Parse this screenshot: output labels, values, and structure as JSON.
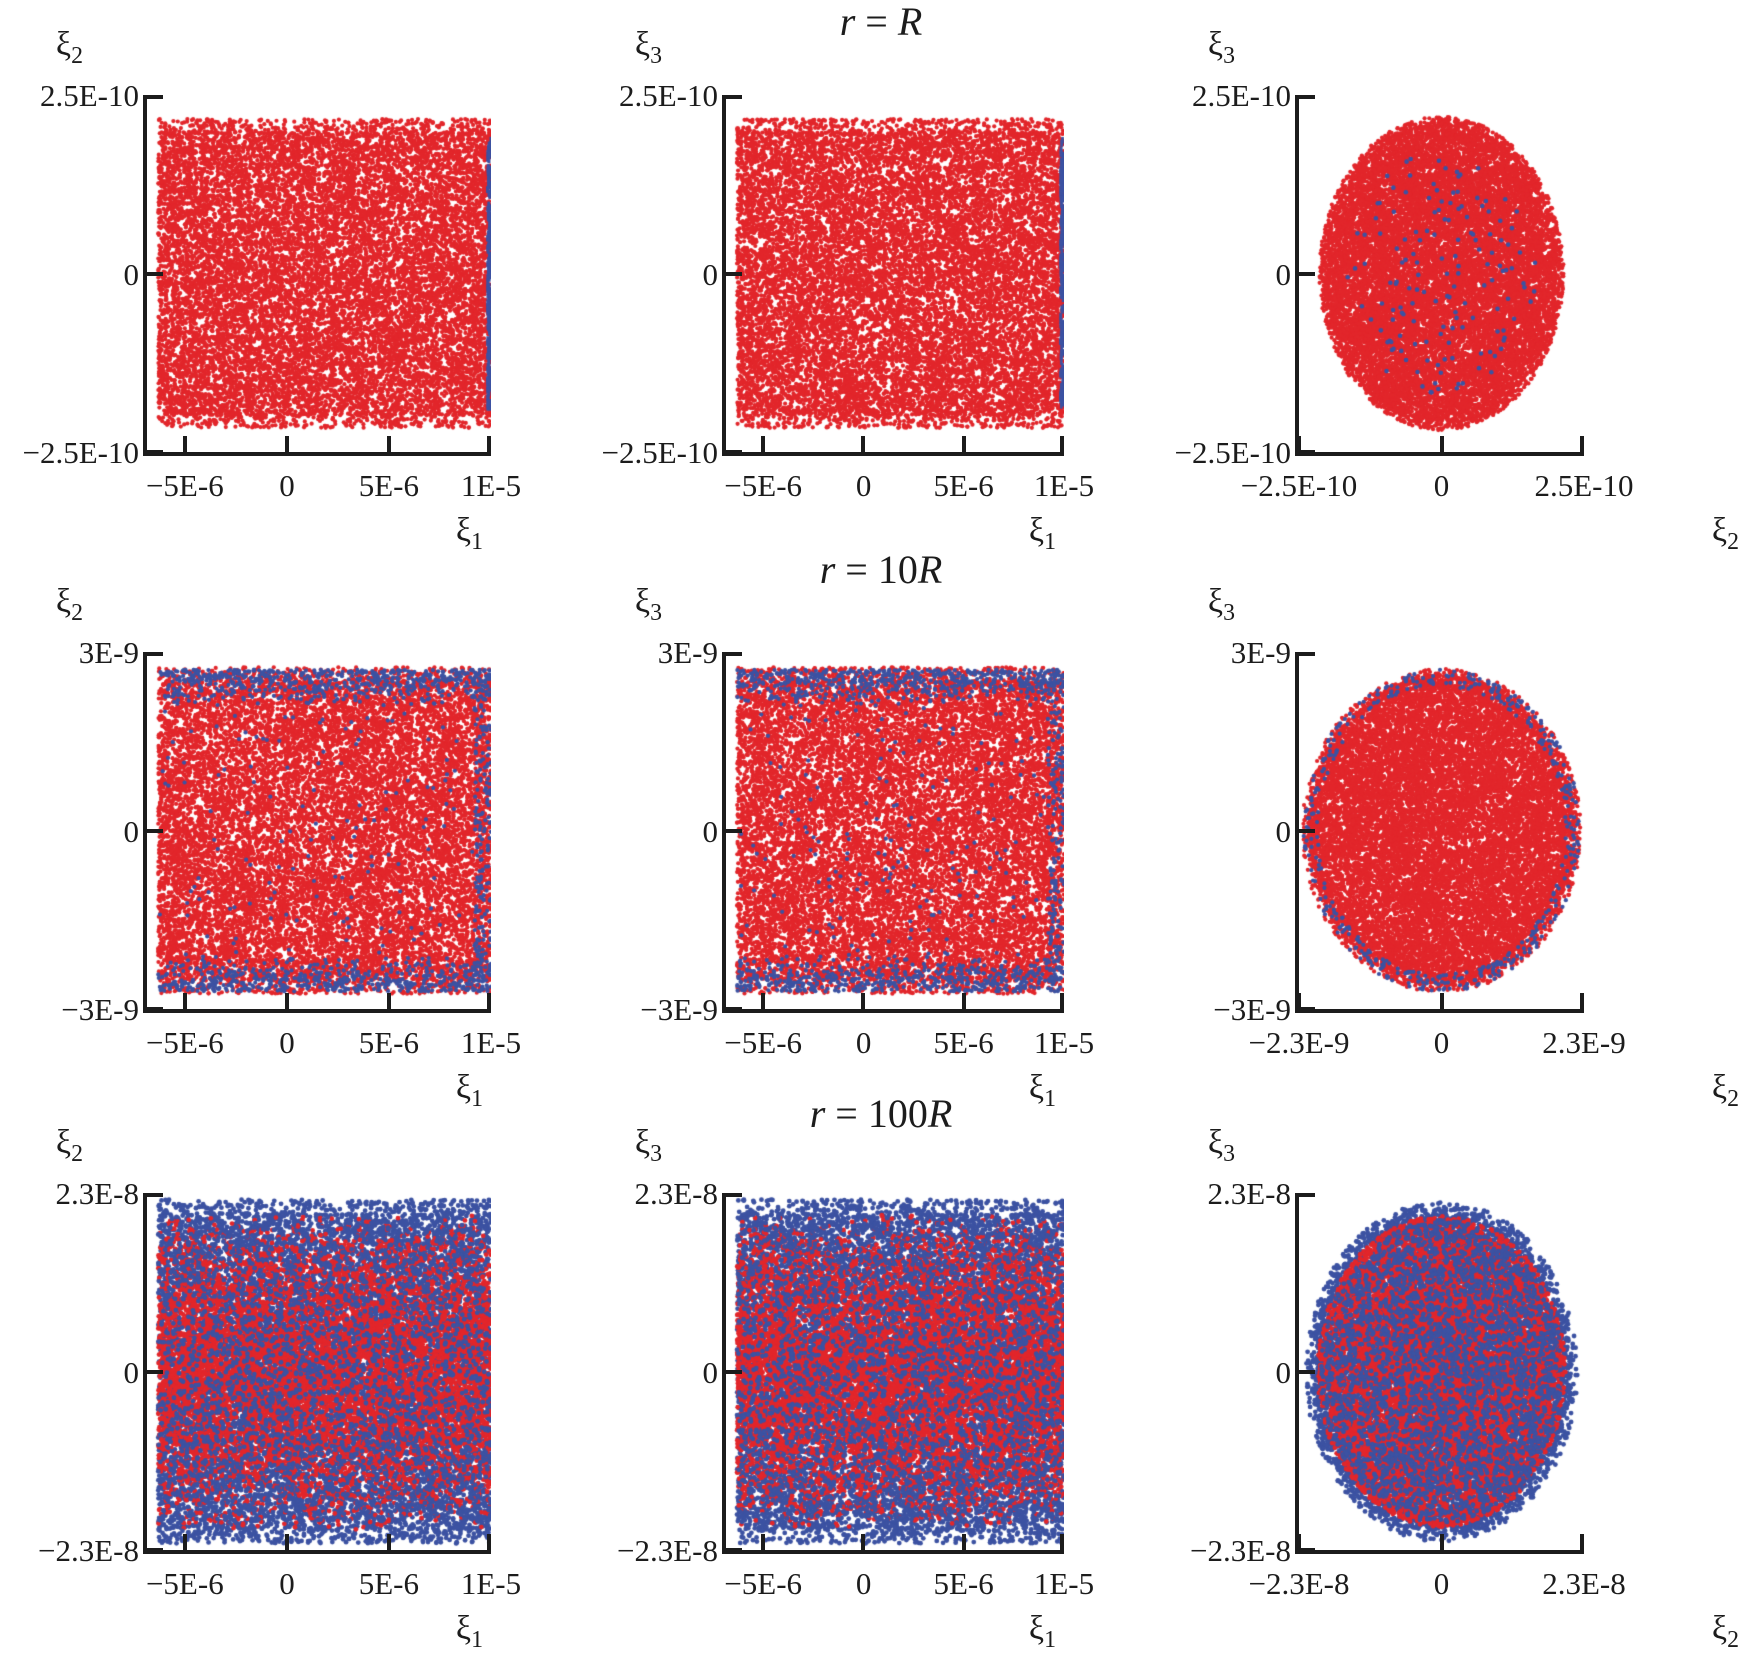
{
  "chart_data": {
    "type": "scatter",
    "colors": {
      "red": "#e2262b",
      "blue": "#3c52a2",
      "axis": "#1c1c1c",
      "background": "#ffffff"
    },
    "rows": [
      {
        "title": {
          "var": "r",
          "eq": " = ",
          "coeff": "",
          "unit": "R"
        },
        "plots": [
          {
            "type": "scatter",
            "xlabel": {
              "base": "ξ",
              "sub": "1"
            },
            "ylabel": {
              "base": "ξ",
              "sub": "2"
            },
            "xlim": [
              -6.85e-06,
              1e-05
            ],
            "ylim": [
              -2.5e-10,
              2.5e-10
            ],
            "x_ticks": [
              {
                "label": "−5E-6",
                "value": -5e-06
              },
              {
                "label": "0",
                "value": 0
              },
              {
                "label": "5E-6",
                "value": 5e-06
              },
              {
                "label": "1E-5",
                "value": 1e-05
              }
            ],
            "y_ticks": [
              {
                "label": "2.5E-10",
                "value": 2.5e-10
              },
              {
                "label": "0",
                "value": 0
              },
              {
                "label": "−2.5E-10",
                "value": -2.5e-10
              }
            ],
            "series": [
              {
                "name": "red-points",
                "color": "red",
                "dist": "rect",
                "x": [
                  -6.3e-06,
                  1e-05
                ],
                "y_spread": 2.05e-10,
                "fringe": 0.05,
                "n": 15000,
                "size": 2.1,
                "seed": 11
              },
              {
                "name": "blue-points",
                "color": "blue",
                "dist": "vstripe",
                "x": [
                  9.82e-06,
                  1e-05
                ],
                "y_spread": 1.88e-10,
                "n": 230,
                "size": 2.0,
                "seed": 12,
                "dash": true
              }
            ]
          },
          {
            "type": "scatter",
            "xlabel": {
              "base": "ξ",
              "sub": "1"
            },
            "ylabel": {
              "base": "ξ",
              "sub": "3"
            },
            "xlim": [
              -6.85e-06,
              1e-05
            ],
            "ylim": [
              -2.5e-10,
              2.5e-10
            ],
            "x_ticks": [
              {
                "label": "−5E-6",
                "value": -5e-06
              },
              {
                "label": "0",
                "value": 0
              },
              {
                "label": "5E-6",
                "value": 5e-06
              },
              {
                "label": "1E-5",
                "value": 1e-05
              }
            ],
            "y_ticks": [
              {
                "label": "2.5E-10",
                "value": 2.5e-10
              },
              {
                "label": "0",
                "value": 0
              },
              {
                "label": "−2.5E-10",
                "value": -2.5e-10
              }
            ],
            "series": [
              {
                "name": "red-points",
                "color": "red",
                "dist": "rect",
                "x": [
                  -6.3e-06,
                  1e-05
                ],
                "y_spread": 2.05e-10,
                "fringe": 0.05,
                "n": 15000,
                "size": 2.1,
                "seed": 21
              },
              {
                "name": "blue-points",
                "color": "blue",
                "dist": "vstripe",
                "x": [
                  9.82e-06,
                  1e-05
                ],
                "y_spread": 1.88e-10,
                "n": 230,
                "size": 2.0,
                "seed": 22,
                "dash": true
              }
            ]
          },
          {
            "type": "scatter",
            "xlabel": {
              "base": "ξ",
              "sub": "2"
            },
            "ylabel": {
              "base": "ξ",
              "sub": "3"
            },
            "xlim": [
              -2.5e-10,
              2.5e-10
            ],
            "ylim": [
              -2.5e-10,
              2.5e-10
            ],
            "x_ticks": [
              {
                "label": "−2.5E-10",
                "value": -2.5e-10
              },
              {
                "label": "0",
                "value": 0
              },
              {
                "label": "2.5E-10",
                "value": 2.5e-10
              }
            ],
            "y_ticks": [
              {
                "label": "2.5E-10",
                "value": 2.5e-10
              },
              {
                "label": "0",
                "value": 0
              },
              {
                "label": "−2.5E-10",
                "value": -2.5e-10
              }
            ],
            "series": [
              {
                "name": "red-points",
                "color": "red",
                "dist": "disk",
                "rx": 2.05e-10,
                "ry": 2.1e-10,
                "rim_fuzz": 0.05,
                "n": 16000,
                "size": 2.1,
                "seed": 31
              },
              {
                "name": "blue-points",
                "color": "blue",
                "dist": "disk",
                "rx": 1.65e-10,
                "ry": 1.7e-10,
                "n": 150,
                "size": 2.3,
                "seed": 32
              }
            ]
          }
        ]
      },
      {
        "title": {
          "var": "r",
          "eq": " = ",
          "coeff": "10",
          "unit": "R"
        },
        "plots": [
          {
            "type": "scatter",
            "xlabel": {
              "base": "ξ",
              "sub": "1"
            },
            "ylabel": {
              "base": "ξ",
              "sub": "2"
            },
            "xlim": [
              -6.85e-06,
              1e-05
            ],
            "ylim": [
              -3e-09,
              3e-09
            ],
            "x_ticks": [
              {
                "label": "−5E-6",
                "value": -5e-06
              },
              {
                "label": "0",
                "value": 0
              },
              {
                "label": "5E-6",
                "value": 5e-06
              },
              {
                "label": "1E-5",
                "value": 1e-05
              }
            ],
            "y_ticks": [
              {
                "label": "3E-9",
                "value": 3e-09
              },
              {
                "label": "0",
                "value": 0
              },
              {
                "label": "−3E-9",
                "value": -3e-09
              }
            ],
            "series": [
              {
                "name": "red-points",
                "color": "red",
                "dist": "rect",
                "x": [
                  -6.3e-06,
                  1e-05
                ],
                "y_spread": 2.6e-09,
                "fringe": 0.05,
                "n": 15000,
                "size": 2.1,
                "seed": 41
              },
              {
                "name": "blue-points",
                "color": "blue",
                "dist": "edges",
                "x": [
                  -6.3e-06,
                  1e-05
                ],
                "y_spread": 2.6e-09,
                "n": 1500,
                "size": 2.1,
                "seed": 42
              }
            ]
          },
          {
            "type": "scatter",
            "xlabel": {
              "base": "ξ",
              "sub": "1"
            },
            "ylabel": {
              "base": "ξ",
              "sub": "3"
            },
            "xlim": [
              -6.85e-06,
              1e-05
            ],
            "ylim": [
              -3e-09,
              3e-09
            ],
            "x_ticks": [
              {
                "label": "−5E-6",
                "value": -5e-06
              },
              {
                "label": "0",
                "value": 0
              },
              {
                "label": "5E-6",
                "value": 5e-06
              },
              {
                "label": "1E-5",
                "value": 1e-05
              }
            ],
            "y_ticks": [
              {
                "label": "3E-9",
                "value": 3e-09
              },
              {
                "label": "0",
                "value": 0
              },
              {
                "label": "−3E-9",
                "value": -3e-09
              }
            ],
            "series": [
              {
                "name": "red-points",
                "color": "red",
                "dist": "rect",
                "x": [
                  -6.3e-06,
                  1e-05
                ],
                "y_spread": 2.6e-09,
                "fringe": 0.05,
                "n": 15000,
                "size": 2.1,
                "seed": 51
              },
              {
                "name": "blue-points",
                "color": "blue",
                "dist": "edges",
                "x": [
                  -6.3e-06,
                  1e-05
                ],
                "y_spread": 2.6e-09,
                "n": 1500,
                "size": 2.1,
                "seed": 52
              }
            ]
          },
          {
            "type": "scatter",
            "xlabel": {
              "base": "ξ",
              "sub": "2"
            },
            "ylabel": {
              "base": "ξ",
              "sub": "3"
            },
            "xlim": [
              -2.3e-09,
              2.3e-09
            ],
            "ylim": [
              -3e-09,
              3e-09
            ],
            "x_ticks": [
              {
                "label": "−2.3E-9",
                "value": -2.3e-09
              },
              {
                "label": "0",
                "value": 0
              },
              {
                "label": "2.3E-9",
                "value": 2.3e-09
              }
            ],
            "y_ticks": [
              {
                "label": "3E-9",
                "value": 3e-09
              },
              {
                "label": "0",
                "value": 0
              },
              {
                "label": "−3E-9",
                "value": -3e-09
              }
            ],
            "series": [
              {
                "name": "red-points",
                "color": "red",
                "dist": "disk",
                "rx": 2.15e-09,
                "ry": 2.6e-09,
                "rim_fuzz": 0.03,
                "n": 16000,
                "size": 2.1,
                "seed": 61
              },
              {
                "name": "blue-points",
                "color": "blue",
                "dist": "rim",
                "rx": 2.15e-09,
                "ry": 2.6e-09,
                "r_in": 0.93,
                "r_out": 1.04,
                "n": 450,
                "size": 2.1,
                "seed": 62
              }
            ]
          }
        ]
      },
      {
        "title": {
          "var": "r",
          "eq": " = ",
          "coeff": "100",
          "unit": "R"
        },
        "plots": [
          {
            "type": "scatter",
            "xlabel": {
              "base": "ξ",
              "sub": "1"
            },
            "ylabel": {
              "base": "ξ",
              "sub": "2"
            },
            "xlim": [
              -6.85e-06,
              1e-05
            ],
            "ylim": [
              -2.3e-08,
              2.3e-08
            ],
            "x_ticks": [
              {
                "label": "−5E-6",
                "value": -5e-06
              },
              {
                "label": "0",
                "value": 0
              },
              {
                "label": "5E-6",
                "value": 5e-06
              },
              {
                "label": "1E-5",
                "value": 1e-05
              }
            ],
            "y_ticks": [
              {
                "label": "2.3E-8",
                "value": 2.3e-08
              },
              {
                "label": "0",
                "value": 0
              },
              {
                "label": "−2.3E-8",
                "value": -2.3e-08
              }
            ],
            "series": [
              {
                "name": "blue-points",
                "color": "blue",
                "dist": "rect",
                "x": [
                  -6.3e-06,
                  1e-05
                ],
                "y_spread": 2.1e-08,
                "fringe": 0.06,
                "n": 9000,
                "size": 2.4,
                "seed": 71
              },
              {
                "name": "red-points",
                "color": "red",
                "dist": "rect-center",
                "x": [
                  -6.3e-06,
                  1e-05
                ],
                "y_spread": 2.05e-08,
                "n": 9500,
                "size": 2.4,
                "seed": 72
              },
              {
                "name": "blue-speckle",
                "color": "blue",
                "dist": "rect",
                "x": [
                  -6.3e-06,
                  1e-05
                ],
                "y_spread": 2e-08,
                "fringe": 0.02,
                "n": 3200,
                "size": 2.4,
                "seed": 73
              }
            ]
          },
          {
            "type": "scatter",
            "xlabel": {
              "base": "ξ",
              "sub": "1"
            },
            "ylabel": {
              "base": "ξ",
              "sub": "3"
            },
            "xlim": [
              -6.85e-06,
              1e-05
            ],
            "ylim": [
              -2.3e-08,
              2.3e-08
            ],
            "x_ticks": [
              {
                "label": "−5E-6",
                "value": -5e-06
              },
              {
                "label": "0",
                "value": 0
              },
              {
                "label": "5E-6",
                "value": 5e-06
              },
              {
                "label": "1E-5",
                "value": 1e-05
              }
            ],
            "y_ticks": [
              {
                "label": "2.3E-8",
                "value": 2.3e-08
              },
              {
                "label": "0",
                "value": 0
              },
              {
                "label": "−2.3E-8",
                "value": -2.3e-08
              }
            ],
            "series": [
              {
                "name": "blue-points",
                "color": "blue",
                "dist": "rect",
                "x": [
                  -6.3e-06,
                  1e-05
                ],
                "y_spread": 2.1e-08,
                "fringe": 0.06,
                "n": 9000,
                "size": 2.4,
                "seed": 81
              },
              {
                "name": "red-points",
                "color": "red",
                "dist": "rect-center",
                "x": [
                  -6.3e-06,
                  1e-05
                ],
                "y_spread": 2.05e-08,
                "n": 9500,
                "size": 2.4,
                "seed": 82
              },
              {
                "name": "blue-speckle",
                "color": "blue",
                "dist": "rect",
                "x": [
                  -6.3e-06,
                  1e-05
                ],
                "y_spread": 2e-08,
                "fringe": 0.02,
                "n": 3200,
                "size": 2.4,
                "seed": 83
              }
            ]
          },
          {
            "type": "scatter",
            "xlabel": {
              "base": "ξ",
              "sub": "2"
            },
            "ylabel": {
              "base": "ξ",
              "sub": "3"
            },
            "xlim": [
              -2.3e-08,
              2.3e-08
            ],
            "ylim": [
              -2.3e-08,
              2.3e-08
            ],
            "x_ticks": [
              {
                "label": "−2.3E-8",
                "value": -2.3e-08
              },
              {
                "label": "0",
                "value": 0
              },
              {
                "label": "2.3E-8",
                "value": 2.3e-08
              }
            ],
            "y_ticks": [
              {
                "label": "2.3E-8",
                "value": 2.3e-08
              },
              {
                "label": "0",
                "value": 0
              },
              {
                "label": "−2.3E-8",
                "value": -2.3e-08
              }
            ],
            "series": [
              {
                "name": "blue-points",
                "color": "blue",
                "dist": "disk",
                "rx": 2.1e-08,
                "ry": 2.1e-08,
                "rim_fuzz": 0.04,
                "n": 9000,
                "size": 2.4,
                "seed": 91
              },
              {
                "name": "red-points",
                "color": "red",
                "dist": "disk-center",
                "rx": 2e-08,
                "ry": 2e-08,
                "pow": 0.7,
                "n": 9500,
                "size": 2.4,
                "seed": 92
              },
              {
                "name": "blue-speckle",
                "color": "blue",
                "dist": "disk",
                "rx": 1.95e-08,
                "ry": 1.95e-08,
                "n": 3200,
                "size": 2.4,
                "seed": 93
              }
            ]
          }
        ]
      }
    ]
  }
}
